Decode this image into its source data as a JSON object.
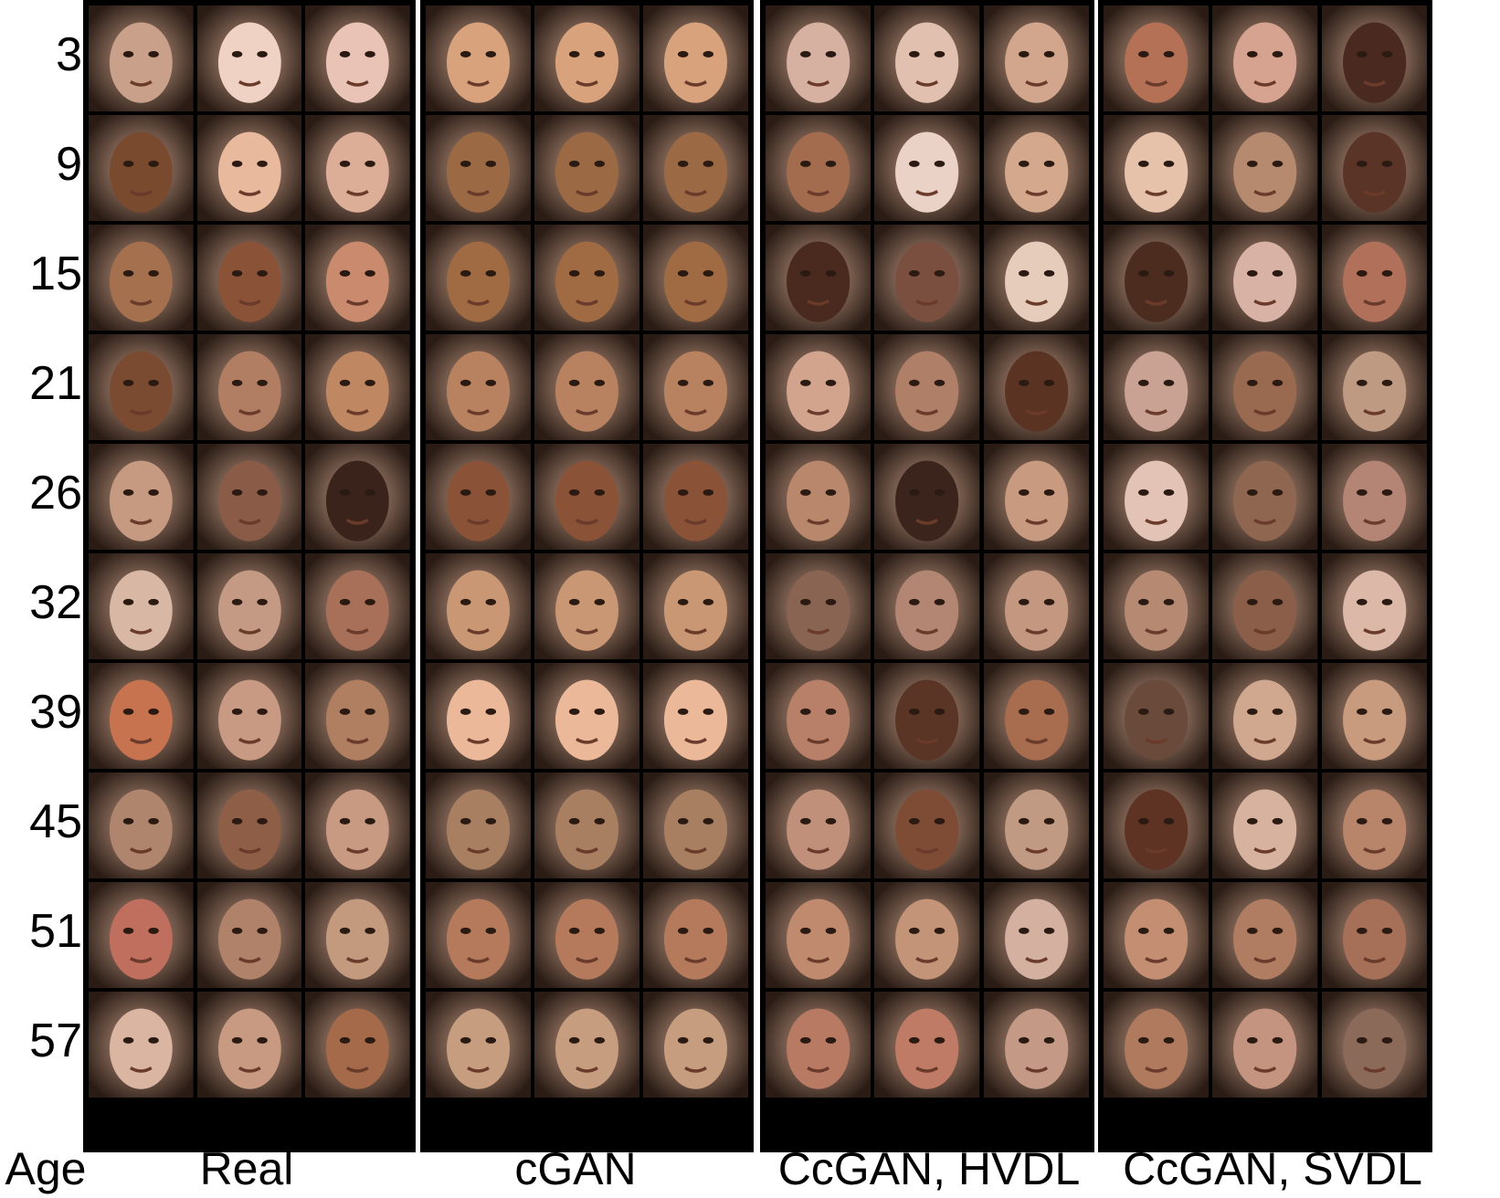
{
  "ages": [
    "3",
    "9",
    "15",
    "21",
    "26",
    "32",
    "39",
    "45",
    "51",
    "57"
  ],
  "labels": {
    "age": "Age",
    "real": "Real",
    "cgan": "cGAN",
    "hvdl": "CcGAN, HVDL",
    "svdl": "CcGAN, SVDL"
  },
  "colors": {
    "border": "#000000",
    "background": "#ffffff"
  },
  "tones": {
    "real": [
      [
        "#c9a18a",
        "#f0d2c4",
        "#e9c3b5"
      ],
      [
        "#7a4a2e",
        "#e8b99c",
        "#dcae97"
      ],
      [
        "#a5704e",
        "#8a5237",
        "#c98a6e"
      ],
      [
        "#7a4a31",
        "#b27e63",
        "#c08763"
      ],
      [
        "#c59a80",
        "#8a5c47",
        "#3a231a"
      ],
      [
        "#d8b7a4",
        "#c49a84",
        "#a87058"
      ],
      [
        "#c7734f",
        "#c89a83",
        "#b07f62"
      ],
      [
        "#b0856d",
        "#8e5f46",
        "#c99a82"
      ],
      [
        "#c06f5e",
        "#b0826a",
        "#c49a7f"
      ],
      [
        "#d9b5a2",
        "#c89a82",
        "#a56a4a"
      ]
    ],
    "cgan": [
      [
        "#d7a27c",
        "#d7a27c",
        "#d7a27c"
      ],
      [
        "#9b6a44",
        "#9b6a44",
        "#9b6a44"
      ],
      [
        "#a06a43",
        "#a06a43",
        "#a06a43"
      ],
      [
        "#b88260",
        "#b88260",
        "#b88260"
      ],
      [
        "#8a5236",
        "#8a5236",
        "#8a5236"
      ],
      [
        "#c99774",
        "#c99774",
        "#c99774"
      ],
      [
        "#ebb99a",
        "#ebb99a",
        "#ebb99a"
      ],
      [
        "#a97f62",
        "#a97f62",
        "#a97f62"
      ],
      [
        "#b57a5c",
        "#b57a5c",
        "#b57a5c"
      ],
      [
        "#c79d80",
        "#c79d80",
        "#c79d80"
      ]
    ],
    "hvdl": [
      [
        "#d6b0a0",
        "#e2c0b0",
        "#d2a68c"
      ],
      [
        "#a46c4f",
        "#ead2c6",
        "#d4a88c"
      ],
      [
        "#4a2a1e",
        "#7a4f40",
        "#e6cdbb"
      ],
      [
        "#d2a48e",
        "#b07f68",
        "#5a3322"
      ],
      [
        "#b9876b",
        "#3b241b",
        "#c89a80"
      ],
      [
        "#8a6452",
        "#b28672",
        "#c49880"
      ],
      [
        "#b88068",
        "#5a3424",
        "#a86d4f"
      ],
      [
        "#c0907a",
        "#7e4c35",
        "#c09a82"
      ],
      [
        "#c08a6e",
        "#c39478",
        "#d4b0a0"
      ],
      [
        "#b97a64",
        "#c07b66",
        "#c49a86"
      ]
    ],
    "svdl": [
      [
        "#b57156",
        "#d6a390",
        "#4a2a20"
      ],
      [
        "#e6c2aa",
        "#b58a6e",
        "#5a3426"
      ],
      [
        "#4d2c20",
        "#d8b2a4",
        "#b0705a"
      ],
      [
        "#c9a294",
        "#9a6a50",
        "#bf9a82"
      ],
      [
        "#e3c3b5",
        "#8f6650",
        "#b48475"
      ],
      [
        "#b68a72",
        "#8a5e48",
        "#dcb8a8"
      ],
      [
        "#6a4a3a",
        "#d0a890",
        "#c89a7e"
      ],
      [
        "#5e3324",
        "#d7b29f",
        "#b8846a"
      ],
      [
        "#c48e72",
        "#b07c62",
        "#a67058"
      ],
      [
        "#b07a5f",
        "#c49480",
        "#8c6a5a"
      ]
    ]
  }
}
